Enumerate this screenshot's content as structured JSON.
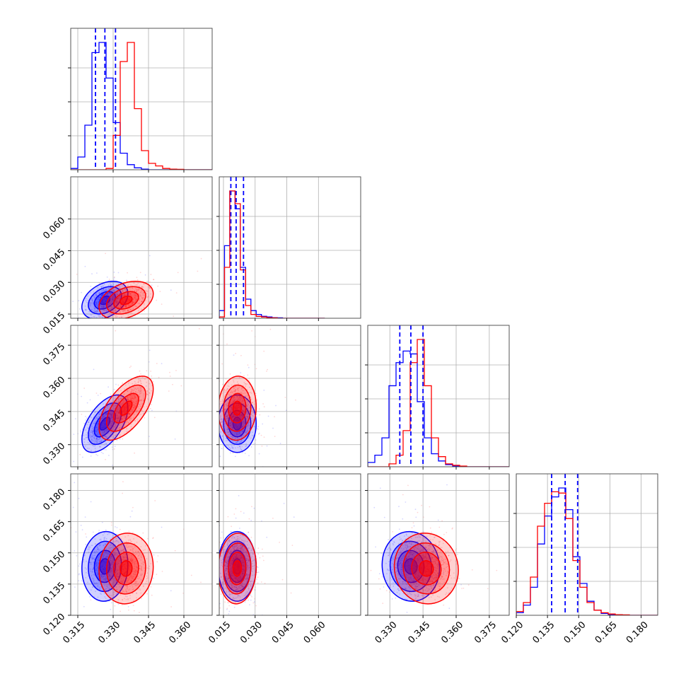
{
  "chart_data": {
    "type": "corner",
    "grid": true,
    "colors": {
      "series_a": "#0000ff",
      "series_b": "#ff0000",
      "axes": "#444444",
      "grid": "#b0b0b0"
    },
    "params": [
      {
        "range": [
          0.312,
          0.372
        ],
        "ticks": [
          0.315,
          0.33,
          0.345,
          0.36
        ],
        "tick_labels": [
          "0.315",
          "0.330",
          "0.345",
          "0.360"
        ]
      },
      {
        "range": [
          0.013,
          0.08
        ],
        "ticks": [
          0.015,
          0.03,
          0.045,
          0.06
        ],
        "tick_labels": [
          "0.015",
          "0.030",
          "0.045",
          "0.060"
        ]
      },
      {
        "range": [
          0.32,
          0.384
        ],
        "ticks": [
          0.33,
          0.345,
          0.36,
          0.375
        ],
        "tick_labels": [
          "0.330",
          "0.345",
          "0.360",
          "0.375"
        ]
      },
      {
        "range": [
          0.12,
          0.188
        ],
        "ticks": [
          0.12,
          0.135,
          0.15,
          0.165,
          0.18
        ],
        "tick_labels": [
          "0.120",
          "0.135",
          "0.150",
          "0.165",
          "0.180"
        ]
      }
    ],
    "series": [
      {
        "color": "#0000ff",
        "mean": [
          0.3265,
          0.0215,
          0.3395,
          0.1435
        ],
        "sd": [
          0.0039,
          0.0036,
          0.0052,
          0.0067
        ],
        "quantiles": [
          [
            0.3225,
            0.3265,
            0.331
          ],
          [
            0.0185,
            0.021,
            0.0245
          ],
          [
            0.3345,
            0.3395,
            0.345
          ],
          [
            0.137,
            0.1435,
            0.1495
          ]
        ],
        "corr": {
          "0-1": 0.35,
          "0-2": 0.55,
          "0-3": 0.05,
          "1-2": 0.0,
          "1-3": 0.0,
          "2-3": -0.05
        },
        "histograms": [
          {
            "edges": [
              0.312,
              0.315,
              0.318,
              0.321,
              0.324,
              0.327,
              0.33,
              0.333,
              0.336,
              0.339,
              0.342,
              0.345,
              0.348,
              0.351,
              0.354,
              0.357,
              0.36,
              0.363,
              0.366,
              0.369,
              0.372
            ],
            "counts": [
              0.01,
              0.1,
              0.35,
              0.92,
              1.0,
              0.72,
              0.37,
              0.13,
              0.04,
              0.015,
              0.005,
              0,
              0,
              0,
              0,
              0,
              0,
              0,
              0,
              0
            ]
          },
          {
            "edges": [
              0.013,
              0.0155,
              0.018,
              0.0205,
              0.023,
              0.0255,
              0.028,
              0.0305,
              0.033,
              0.0355,
              0.038,
              0.0405,
              0.043,
              0.0455,
              0.048,
              0.0505,
              0.053,
              0.0555,
              0.058,
              0.0605,
              0.063
            ],
            "counts": [
              0.06,
              0.57,
              1.0,
              0.86,
              0.4,
              0.15,
              0.06,
              0.03,
              0.015,
              0.01,
              0.005,
              0.003,
              0,
              0,
              0,
              0,
              0,
              0,
              0,
              0
            ]
          },
          {
            "edges": [
              0.32,
              0.3232,
              0.3264,
              0.3296,
              0.3328,
              0.336,
              0.3392,
              0.3424,
              0.3456,
              0.3488,
              0.352,
              0.3552,
              0.3584,
              0.3616,
              0.3648,
              0.368,
              0.3712,
              0.3744,
              0.3776,
              0.3808,
              0.384
            ],
            "counts": [
              0.03,
              0.08,
              0.2,
              0.56,
              0.72,
              0.8,
              0.78,
              0.45,
              0.2,
              0.09,
              0.04,
              0.015,
              0.005,
              0,
              0,
              0,
              0,
              0,
              0,
              0
            ]
          },
          {
            "edges": [
              0.12,
              0.1234,
              0.1268,
              0.1302,
              0.1336,
              0.137,
              0.1404,
              0.1438,
              0.1472,
              0.1506,
              0.154,
              0.1574,
              0.1608,
              0.1642,
              0.1676,
              0.171,
              0.1744,
              0.1778,
              0.1812,
              0.1846,
              0.188
            ],
            "counts": [
              0.02,
              0.08,
              0.22,
              0.56,
              0.78,
              0.93,
              1.0,
              0.83,
              0.46,
              0.25,
              0.11,
              0.04,
              0.015,
              0.005,
              0.003,
              0,
              0,
              0,
              0,
              0
            ]
          }
        ]
      },
      {
        "color": "#ff0000",
        "mean": [
          0.3355,
          0.0215,
          0.3465,
          0.1425
        ],
        "sd": [
          0.0046,
          0.0036,
          0.0058,
          0.0068
        ],
        "quantiles": [
          [
            0.331,
            0.3355,
            0.34
          ],
          [
            0.0185,
            0.021,
            0.0245
          ],
          [
            0.341,
            0.3465,
            0.352
          ],
          [
            0.136,
            0.1425,
            0.149
          ]
        ],
        "corr": {
          "0-1": 0.35,
          "0-2": 0.6,
          "0-3": 0.05,
          "1-2": 0.05,
          "1-3": 0.05,
          "2-3": -0.05
        },
        "histograms": [
          {
            "edges": [
              0.312,
              0.315,
              0.318,
              0.321,
              0.324,
              0.327,
              0.33,
              0.333,
              0.336,
              0.339,
              0.342,
              0.345,
              0.348,
              0.351,
              0.354,
              0.357,
              0.36,
              0.363,
              0.366,
              0.369,
              0.372
            ],
            "counts": [
              0,
              0,
              0,
              0,
              0,
              0.01,
              0.27,
              0.85,
              1.0,
              0.48,
              0.15,
              0.05,
              0.03,
              0.01,
              0.005,
              0.003,
              0,
              0,
              0,
              0
            ]
          },
          {
            "edges": [
              0.013,
              0.0155,
              0.018,
              0.0205,
              0.023,
              0.0255,
              0.028,
              0.0305,
              0.033,
              0.0355,
              0.038,
              0.0405,
              0.043,
              0.0455,
              0.048,
              0.0505,
              0.053,
              0.0555,
              0.058,
              0.0605,
              0.063
            ],
            "counts": [
              0.01,
              0.4,
              1.0,
              0.9,
              0.38,
              0.1,
              0.03,
              0.015,
              0.01,
              0.005,
              0.003,
              0,
              0,
              0,
              0,
              0,
              0,
              0,
              0,
              0
            ]
          },
          {
            "edges": [
              0.32,
              0.3232,
              0.3264,
              0.3296,
              0.3328,
              0.336,
              0.3392,
              0.3424,
              0.3456,
              0.3488,
              0.352,
              0.3552,
              0.3584,
              0.3616,
              0.3648,
              0.368,
              0.3712,
              0.3744,
              0.3776,
              0.3808,
              0.384
            ],
            "counts": [
              0,
              0,
              0,
              0.02,
              0.08,
              0.25,
              0.72,
              0.88,
              0.56,
              0.2,
              0.07,
              0.02,
              0.01,
              0.005,
              0,
              0,
              0,
              0,
              0,
              0
            ]
          },
          {
            "edges": [
              0.12,
              0.1234,
              0.1268,
              0.1302,
              0.1336,
              0.137,
              0.1404,
              0.1438,
              0.1472,
              0.1506,
              0.154,
              0.1574,
              0.1608,
              0.1642,
              0.1676,
              0.171,
              0.1744,
              0.1778,
              0.1812,
              0.1846,
              0.188
            ],
            "counts": [
              0.03,
              0.1,
              0.3,
              0.7,
              0.88,
              0.97,
              0.96,
              0.76,
              0.43,
              0.22,
              0.1,
              0.04,
              0.02,
              0.01,
              0.005,
              0.003,
              0,
              0,
              0,
              0
            ]
          }
        ]
      }
    ]
  }
}
